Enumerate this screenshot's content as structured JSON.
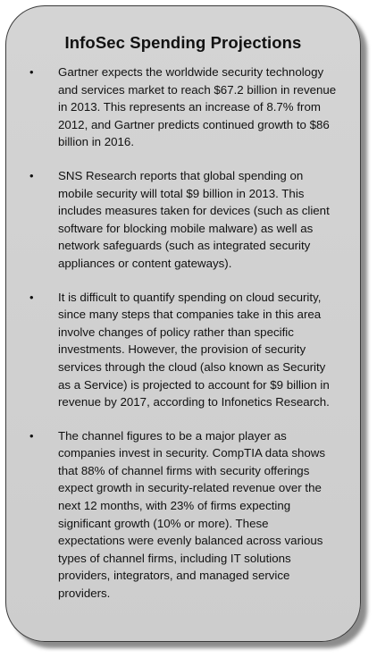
{
  "title": "InfoSec Spending Projections",
  "bullet_glyph": "•",
  "items": [
    "Gartner expects the worldwide security technology and services market to reach $67.2 billion in revenue in 2013. This represents an increase of 8.7% from 2012, and Gartner predicts continued growth to $86 billion in 2016.",
    "SNS Research reports that global spending on mobile security will total $9 billion in 2013. This includes measures taken for devices (such as client software for blocking mobile malware) as well as network safeguards (such as integrated security appliances or content gateways).",
    "It is difficult to quantify spending on cloud security, since many steps that companies take in this area involve changes of policy rather than specific investments. However, the provision of security services through the cloud (also known as Security as a Service) is projected to account for $9 billion in revenue by 2017, according to Infonetics Research.",
    "The channel figures to be a major player as companies invest in security. CompTIA data shows that 88% of channel firms with security offerings expect growth in security-related revenue over the next 12 months, with 23% of firms expecting significant growth (10% or more). These expectations were evenly balanced across various types of channel firms, including IT solutions providers, integrators, and managed service providers."
  ],
  "colors": {
    "panel_bg": "#d0d0d0",
    "border": "#3a3a3a",
    "text": "#111111"
  }
}
